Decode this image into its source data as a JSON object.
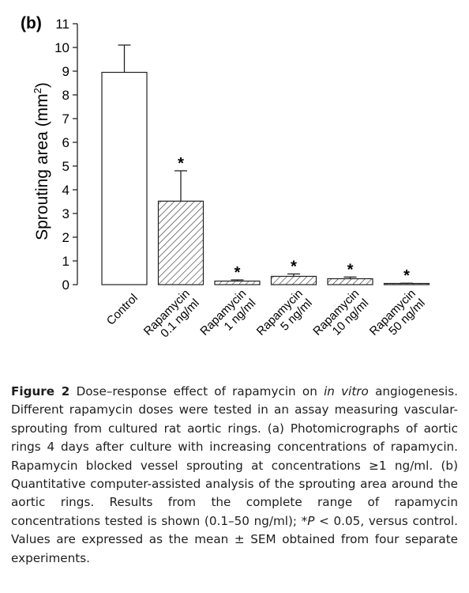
{
  "panel_label": "(b)",
  "caption": {
    "label": "Figure 2",
    "segments": [
      {
        "text": " Dose–response effect of rapamycin on ",
        "italic": false
      },
      {
        "text": "in vitro",
        "italic": true
      },
      {
        "text": " angiogenesis. Different rapamycin doses were tested in an assay measuring vascular-sprouting from cultured rat aortic rings. (a) Photomicrographs of aortic rings 4 days after culture with increasing concentrations of rapamycin. Rapamycin blocked vessel sprouting at concentrations ≥1 ng/ml. (b) Quantitative computer-assisted analysis of the sprouting area around the aortic rings. Results from the complete range of rapamycin concentrations tested is shown (0.1–50 ng/ml); *",
        "italic": false
      },
      {
        "text": "P",
        "italic": true
      },
      {
        "text": " < 0.05, versus control. Values are expressed as the mean ± SEM obtained from four separate experiments.",
        "italic": false
      }
    ]
  },
  "chart_data": {
    "type": "bar",
    "ylabel": "Sprouting area (mm²)",
    "ylabel_main": "Sprouting area (mm",
    "ylabel_sup": "2",
    "ylabel_close": ")",
    "ylim": [
      0,
      11
    ],
    "yticks": [
      0,
      1,
      2,
      3,
      4,
      5,
      6,
      7,
      8,
      9,
      10,
      11
    ],
    "grid": false,
    "categories": [
      [
        "Control"
      ],
      [
        "Rapamycin",
        "0.1 ng/ml"
      ],
      [
        "Rapamycin",
        "1 ng/ml"
      ],
      [
        "Rapamycin",
        "5 ng/ml"
      ],
      [
        "Rapamycin",
        "10 ng/ml"
      ],
      [
        "Rapamycin",
        "50 ng/ml"
      ]
    ],
    "values": [
      8.95,
      3.52,
      0.15,
      0.35,
      0.25,
      0.05
    ],
    "errors": [
      1.15,
      1.28,
      0.05,
      0.1,
      0.07,
      0.01
    ],
    "significance": [
      "",
      "*",
      "*",
      "*",
      "*",
      "*"
    ],
    "fills": [
      "none",
      "hatched",
      "hatched",
      "hatched",
      "hatched",
      "hatched"
    ]
  }
}
